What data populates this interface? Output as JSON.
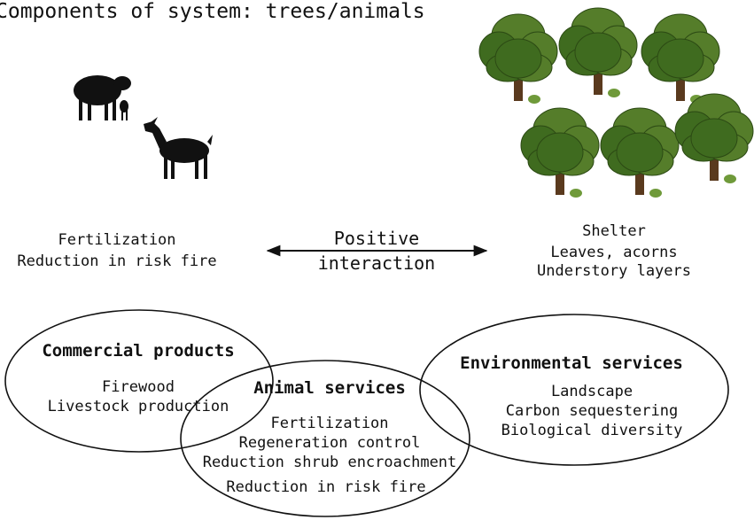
{
  "title": "Components of system: trees/animals",
  "interactions": {
    "animal_benefits": [
      "Fertilization",
      "Reduction in risk fire"
    ],
    "relation": [
      "Positive",
      "interaction"
    ],
    "tree_benefits": [
      "Shelter",
      "Leaves, acorns",
      "Understory layers"
    ]
  },
  "services": [
    {
      "title": "Commercial products",
      "items": [
        "Firewood",
        "Livestock production"
      ]
    },
    {
      "title": "Animal services",
      "items": [
        "Fertilization",
        "Regeneration control",
        "Reduction shrub encroachment",
        "Reduction in risk fire"
      ]
    },
    {
      "title": "Environmental services",
      "items": [
        "Landscape",
        "Carbon sequestering",
        "Biological diversity"
      ]
    }
  ]
}
